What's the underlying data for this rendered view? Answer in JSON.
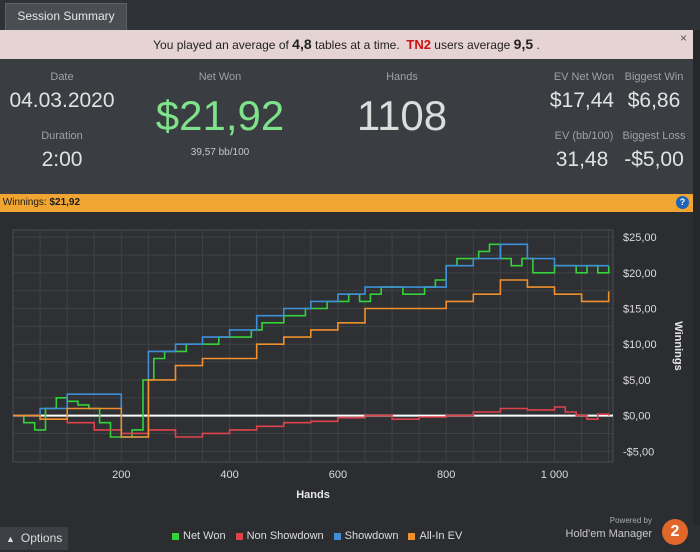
{
  "tab": {
    "label": "Session Summary"
  },
  "notice": {
    "pre": "You played an average of",
    "tables": "4,8",
    "mid": "tables at a time.",
    "site": "TN2",
    "post": "users average",
    "avg": "9,5",
    "end": ".",
    "close": "×"
  },
  "stats": {
    "date_label": "Date",
    "date": "04.03.2020",
    "duration_label": "Duration",
    "duration": "2:00",
    "net_won_label": "Net Won",
    "net_won": "$21,92",
    "bb100": "39,57 bb/100",
    "hands_label": "Hands",
    "hands": "1108",
    "ev_net_won_label": "EV Net Won",
    "ev_net_won": "$17,44",
    "biggest_win_label": "Biggest Win",
    "biggest_win": "$6,86",
    "ev_bb_label": "EV (bb/100)",
    "ev_bb": "31,48",
    "biggest_loss_label": "Biggest Loss",
    "biggest_loss": "-$5,00"
  },
  "banner": {
    "label": "Winnings:",
    "value": "$21,92",
    "help": "?"
  },
  "footer": {
    "options": "Options",
    "powered_by": "Powered by",
    "brand": "Hold'em Manager",
    "badge": "2"
  },
  "colors": {
    "net_won": "#35d13a",
    "non_showdown": "#e0424b",
    "showdown": "#3e8fd8",
    "allin_ev": "#f0902c",
    "banner": "#f0a431",
    "net_won_value": "#7ee38a"
  },
  "chart_data": {
    "type": "line",
    "xlabel": "Hands",
    "ylabel": "Winnings",
    "xlim": [
      0,
      1108
    ],
    "ylim": [
      -6.5,
      26
    ],
    "xticks": [
      200,
      400,
      600,
      800,
      1000
    ],
    "xtick_labels": [
      "200",
      "400",
      "600",
      "800",
      "1 000"
    ],
    "yticks": [
      -5,
      0,
      5,
      10,
      15,
      20,
      25
    ],
    "ytick_labels": [
      "-$5,00",
      "$0,00",
      "$5,00",
      "$10,00",
      "$15,00",
      "$20,00",
      "$25,00"
    ],
    "grid": true,
    "legend_position": "bottom",
    "series": [
      {
        "name": "Net Won",
        "color": "#35d13a",
        "x": [
          0,
          20,
          40,
          60,
          80,
          100,
          120,
          140,
          160,
          180,
          200,
          220,
          240,
          260,
          280,
          300,
          320,
          340,
          360,
          380,
          400,
          420,
          440,
          460,
          480,
          500,
          520,
          540,
          560,
          580,
          600,
          620,
          640,
          660,
          680,
          700,
          720,
          740,
          760,
          780,
          800,
          820,
          840,
          860,
          880,
          900,
          920,
          940,
          960,
          980,
          1000,
          1020,
          1040,
          1060,
          1080,
          1100
        ],
        "y": [
          0,
          -1,
          -2,
          1,
          2.5,
          2,
          1.5,
          1,
          -1,
          -3,
          -3,
          -2,
          5,
          8,
          9,
          9,
          10,
          10,
          10,
          11,
          11,
          11,
          12,
          13,
          13,
          14,
          14,
          15,
          15,
          16,
          16,
          17,
          16,
          17,
          18,
          18,
          17,
          17,
          18,
          19,
          21,
          22,
          22,
          23,
          24,
          22,
          21,
          22,
          20,
          20,
          21,
          21,
          20,
          21,
          20,
          21
        ]
      },
      {
        "name": "Non Showdown",
        "color": "#e0424b",
        "x": [
          0,
          50,
          100,
          150,
          200,
          250,
          300,
          350,
          400,
          450,
          500,
          550,
          600,
          650,
          700,
          750,
          800,
          850,
          900,
          950,
          1000,
          1020,
          1040,
          1060,
          1080,
          1100
        ],
        "y": [
          0,
          -0.5,
          -1,
          -2,
          -2.5,
          -2,
          -3,
          -2.5,
          -2,
          -1.5,
          -1,
          -0.8,
          -0.3,
          0,
          -0.5,
          -0.2,
          0,
          0.5,
          1,
          0.8,
          1.2,
          0.5,
          0,
          -0.5,
          0.2,
          0
        ]
      },
      {
        "name": "Showdown",
        "color": "#3e8fd8",
        "x": [
          0,
          50,
          100,
          150,
          200,
          250,
          300,
          350,
          400,
          450,
          500,
          550,
          600,
          650,
          700,
          750,
          800,
          850,
          900,
          950,
          1000,
          1050,
          1100
        ],
        "y": [
          0,
          1,
          3,
          3,
          -3,
          9,
          10,
          11,
          12,
          14,
          15,
          16,
          17,
          18,
          18,
          18,
          21,
          22,
          24,
          22,
          21,
          21,
          21
        ]
      },
      {
        "name": "All-In EV",
        "color": "#f0902c",
        "x": [
          0,
          50,
          100,
          150,
          200,
          250,
          300,
          350,
          400,
          450,
          500,
          550,
          600,
          650,
          700,
          750,
          800,
          850,
          900,
          950,
          1000,
          1050,
          1100
        ],
        "y": [
          0,
          -0.5,
          1,
          1,
          -3,
          5,
          7,
          8,
          8,
          10,
          11,
          12,
          13,
          15,
          15,
          15,
          16,
          17,
          19,
          18,
          17,
          16,
          17.4
        ]
      }
    ]
  }
}
